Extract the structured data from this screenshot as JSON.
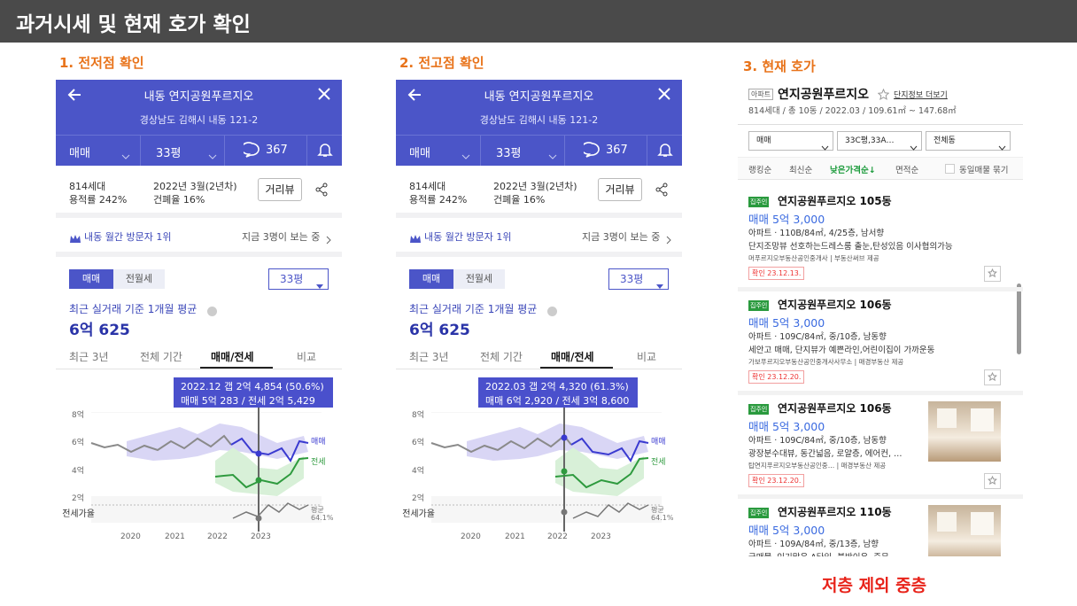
{
  "header": {
    "title": "과거시세 및 현재 호가 확인"
  },
  "app": {
    "nav_title": "내동 연지공원푸르지오",
    "address": "경상남도 김해시 내동 121-2",
    "tabs": [
      "매매",
      "33평",
      "367"
    ],
    "households": "814세대",
    "far": "용적률 242%",
    "built": "2022년 3월(2년차)",
    "bcr": "건폐율 16%",
    "street_view": "거리뷰",
    "visitor_rank": "내동 월간 방문자 1위",
    "viewers": "지금 3명이 보는 중",
    "toggle": [
      "매매",
      "전월세"
    ],
    "size_select": "33평",
    "avg_label": "최근 실거래 기준 1개월 평균",
    "avg_price": "6억 625",
    "chart_tabs": [
      "최근 3년",
      "전체 기간",
      "매매/전세",
      "비교"
    ],
    "yticks": [
      "8억",
      "6억",
      "4억",
      "2억"
    ],
    "ratio_label": "전세가율",
    "xticks": [
      "2020",
      "2021",
      "2022",
      "2023"
    ],
    "legend": [
      "매매",
      "전세",
      "평균",
      "64.1%"
    ]
  },
  "panels": [
    {
      "heading": "1. 전저점 확인",
      "tooltip": [
        "2022.12  갭 2억 4,854 (50.6%)",
        "매매 5억 283 / 전세 2억 5,429"
      ]
    },
    {
      "heading": "2. 전고점 확인",
      "tooltip": [
        "2022.03  갭 2억 4,320 (61.3%)",
        "매매 6억 2,920 / 전세 3억 8,600"
      ]
    }
  ],
  "listing": {
    "heading": "3. 현재 호가",
    "badge": "아파트",
    "title": "연지공원푸르지오",
    "more": "단지정보 더보기",
    "summary": "814세대 / 총 10동 / 2022.03 / 109.61㎡ ~ 147.68㎡",
    "selects": [
      "매매",
      "33C평,33A…",
      "전체동"
    ],
    "sorts": [
      "랭킹순",
      "최신순",
      "낮은가격순↓",
      "면적순"
    ],
    "group": "동일매물 묶기",
    "items": [
      {
        "badge": "집주인",
        "title": "연지공원푸르지오 105동",
        "price": "매매 5억 3,000",
        "spec": "아파트 · 110B/84㎡, 4/25층, 남서향",
        "desc": "단지조망뷰 선호하는드레스룸 출눈,탄성있음 이사협의가능",
        "agency": "머푸르지오부동산공인중개사 | 부동산써브 제공",
        "date": "확인 23.12.13."
      },
      {
        "badge": "집주인",
        "title": "연지공원푸르지오 106동",
        "price": "매매 5억 3,000",
        "spec": "아파트 · 109C/84㎡, 중/10층, 남동향",
        "desc": "세안고 매매, 단지뷰가 예쁜라인,어린이집이 가까운동",
        "agency": "가보푸르지오부동산공인중개사사무소 | 매경부동산 제공",
        "date": "확인 23.12.20."
      },
      {
        "badge": "집주인",
        "title": "연지공원푸르지오 106동",
        "price": "매매 5억 3,000",
        "spec": "아파트 · 109C/84㎡, 중/10층, 남동향",
        "desc": "광장분수대뷰, 동간넓음, 로얄층, 에어컨, …",
        "agency": "탑연지푸르지오부동산공인중… | 매경부동산 제공",
        "date": "확인 23.12.20."
      },
      {
        "badge": "집주인",
        "title": "연지공원푸르지오 110동",
        "price": "매매 5억 3,000",
        "spec": "아파트 · 109A/84㎡, 중/13층, 남향",
        "desc": "급매물, 인기많은 A타입, 붙박이유, 중문…"
      }
    ]
  },
  "note": "저층 제외 중층"
}
